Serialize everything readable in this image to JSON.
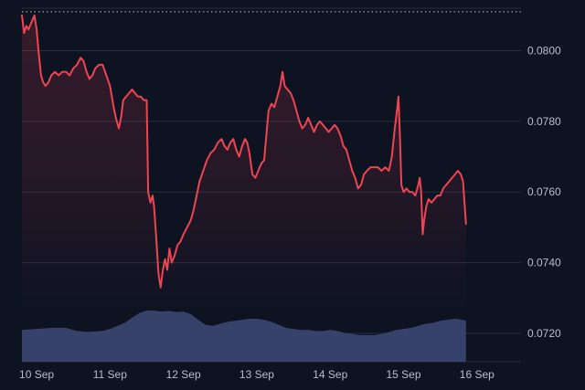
{
  "chart_data": {
    "type": "area",
    "title": "",
    "xlabel": "",
    "ylabel": "",
    "y_range": [
      0.0712,
      0.0812
    ],
    "reference_line": 0.0811,
    "grid": "horizontal",
    "y_ticks": [
      {
        "value": 0.08,
        "label": "0.0800"
      },
      {
        "value": 0.078,
        "label": "0.0780"
      },
      {
        "value": 0.076,
        "label": "0.0760"
      },
      {
        "value": 0.074,
        "label": "0.0740"
      },
      {
        "value": 0.072,
        "label": "0.0720"
      }
    ],
    "x_ticks": [
      {
        "day": 10,
        "label": "10 Sep"
      },
      {
        "day": 11,
        "label": "11 Sep"
      },
      {
        "day": 12,
        "label": "12 Sep"
      },
      {
        "day": 13,
        "label": "13 Sep"
      },
      {
        "day": 14,
        "label": "14 Sep"
      },
      {
        "day": 15,
        "label": "15 Sep"
      },
      {
        "day": 16,
        "label": "16 Sep"
      }
    ],
    "x_range": [
      9.8,
      16.6
    ],
    "price_series": {
      "color": "#ef4452",
      "points": [
        [
          9.8,
          0.081
        ],
        [
          9.83,
          0.0805
        ],
        [
          9.86,
          0.0807
        ],
        [
          9.89,
          0.0806
        ],
        [
          9.93,
          0.0808
        ],
        [
          9.97,
          0.081
        ],
        [
          10.0,
          0.0806
        ],
        [
          10.03,
          0.0799
        ],
        [
          10.06,
          0.0793
        ],
        [
          10.09,
          0.0791
        ],
        [
          10.12,
          0.079
        ],
        [
          10.16,
          0.0791
        ],
        [
          10.2,
          0.0793
        ],
        [
          10.25,
          0.0794
        ],
        [
          10.3,
          0.0793
        ],
        [
          10.35,
          0.0794
        ],
        [
          10.4,
          0.0794
        ],
        [
          10.45,
          0.0793
        ],
        [
          10.5,
          0.0795
        ],
        [
          10.55,
          0.0796
        ],
        [
          10.6,
          0.0798
        ],
        [
          10.64,
          0.0797
        ],
        [
          10.68,
          0.0794
        ],
        [
          10.72,
          0.0792
        ],
        [
          10.76,
          0.0793
        ],
        [
          10.8,
          0.0795
        ],
        [
          10.85,
          0.0796
        ],
        [
          10.9,
          0.0796
        ],
        [
          10.95,
          0.0793
        ],
        [
          11.0,
          0.079
        ],
        [
          11.05,
          0.0784
        ],
        [
          11.08,
          0.0781
        ],
        [
          11.12,
          0.0778
        ],
        [
          11.15,
          0.0781
        ],
        [
          11.18,
          0.0786
        ],
        [
          11.22,
          0.0787
        ],
        [
          11.26,
          0.0788
        ],
        [
          11.3,
          0.0789
        ],
        [
          11.34,
          0.0788
        ],
        [
          11.38,
          0.0787
        ],
        [
          11.42,
          0.0787
        ],
        [
          11.46,
          0.0786
        ],
        [
          11.5,
          0.0786
        ],
        [
          11.52,
          0.076
        ],
        [
          11.55,
          0.0757
        ],
        [
          11.58,
          0.0759
        ],
        [
          11.6,
          0.0756
        ],
        [
          11.63,
          0.0747
        ],
        [
          11.66,
          0.0737
        ],
        [
          11.69,
          0.0733
        ],
        [
          11.72,
          0.0738
        ],
        [
          11.75,
          0.0741
        ],
        [
          11.78,
          0.0738
        ],
        [
          11.81,
          0.0744
        ],
        [
          11.84,
          0.074
        ],
        [
          11.88,
          0.0742
        ],
        [
          11.92,
          0.0745
        ],
        [
          11.96,
          0.0746
        ],
        [
          12.0,
          0.0748
        ],
        [
          12.05,
          0.075
        ],
        [
          12.1,
          0.0752
        ],
        [
          12.14,
          0.0755
        ],
        [
          12.18,
          0.0759
        ],
        [
          12.22,
          0.0763
        ],
        [
          12.27,
          0.0766
        ],
        [
          12.32,
          0.0769
        ],
        [
          12.37,
          0.0771
        ],
        [
          12.42,
          0.0772
        ],
        [
          12.47,
          0.0774
        ],
        [
          12.52,
          0.0775
        ],
        [
          12.56,
          0.0773
        ],
        [
          12.6,
          0.0772
        ],
        [
          12.64,
          0.0774
        ],
        [
          12.68,
          0.0775
        ],
        [
          12.72,
          0.0772
        ],
        [
          12.76,
          0.077
        ],
        [
          12.8,
          0.0773
        ],
        [
          12.84,
          0.0775
        ],
        [
          12.87,
          0.0774
        ],
        [
          12.9,
          0.0771
        ],
        [
          12.94,
          0.0765
        ],
        [
          12.98,
          0.0764
        ],
        [
          13.02,
          0.0766
        ],
        [
          13.06,
          0.0768
        ],
        [
          13.1,
          0.0769
        ],
        [
          13.13,
          0.0776
        ],
        [
          13.16,
          0.0783
        ],
        [
          13.2,
          0.0785
        ],
        [
          13.24,
          0.0784
        ],
        [
          13.28,
          0.0787
        ],
        [
          13.32,
          0.079
        ],
        [
          13.35,
          0.0794
        ],
        [
          13.38,
          0.079
        ],
        [
          13.42,
          0.0789
        ],
        [
          13.46,
          0.0788
        ],
        [
          13.5,
          0.0786
        ],
        [
          13.54,
          0.0783
        ],
        [
          13.58,
          0.078
        ],
        [
          13.62,
          0.0778
        ],
        [
          13.66,
          0.0779
        ],
        [
          13.7,
          0.0781
        ],
        [
          13.74,
          0.0779
        ],
        [
          13.78,
          0.0777
        ],
        [
          13.82,
          0.0779
        ],
        [
          13.86,
          0.078
        ],
        [
          13.9,
          0.0779
        ],
        [
          13.94,
          0.0778
        ],
        [
          13.98,
          0.0777
        ],
        [
          14.02,
          0.0778
        ],
        [
          14.06,
          0.0779
        ],
        [
          14.1,
          0.0778
        ],
        [
          14.14,
          0.0776
        ],
        [
          14.18,
          0.0773
        ],
        [
          14.22,
          0.0772
        ],
        [
          14.26,
          0.0769
        ],
        [
          14.3,
          0.0766
        ],
        [
          14.34,
          0.0764
        ],
        [
          14.38,
          0.0761
        ],
        [
          14.42,
          0.0762
        ],
        [
          14.46,
          0.0765
        ],
        [
          14.5,
          0.0766
        ],
        [
          14.55,
          0.0767
        ],
        [
          14.6,
          0.0767
        ],
        [
          14.65,
          0.0767
        ],
        [
          14.7,
          0.0766
        ],
        [
          14.75,
          0.0767
        ],
        [
          14.8,
          0.0766
        ],
        [
          14.84,
          0.077
        ],
        [
          14.88,
          0.0778
        ],
        [
          14.91,
          0.0783
        ],
        [
          14.93,
          0.0787
        ],
        [
          14.95,
          0.0776
        ],
        [
          14.97,
          0.0762
        ],
        [
          15.0,
          0.076
        ],
        [
          15.04,
          0.0761
        ],
        [
          15.08,
          0.076
        ],
        [
          15.12,
          0.076
        ],
        [
          15.16,
          0.0759
        ],
        [
          15.2,
          0.0762
        ],
        [
          15.22,
          0.0764
        ],
        [
          15.24,
          0.076
        ],
        [
          15.26,
          0.0748
        ],
        [
          15.28,
          0.0752
        ],
        [
          15.31,
          0.0756
        ],
        [
          15.34,
          0.0758
        ],
        [
          15.38,
          0.0757
        ],
        [
          15.42,
          0.0758
        ],
        [
          15.46,
          0.0759
        ],
        [
          15.5,
          0.0759
        ],
        [
          15.54,
          0.0761
        ],
        [
          15.58,
          0.0762
        ],
        [
          15.62,
          0.0763
        ],
        [
          15.66,
          0.0764
        ],
        [
          15.7,
          0.0765
        ],
        [
          15.74,
          0.0766
        ],
        [
          15.78,
          0.0765
        ],
        [
          15.81,
          0.0763
        ],
        [
          15.83,
          0.0757
        ],
        [
          15.85,
          0.0751
        ]
      ]
    },
    "volume_series": {
      "color": "#3a4470",
      "points": [
        [
          9.8,
          0.62
        ],
        [
          10.0,
          0.64
        ],
        [
          10.2,
          0.66
        ],
        [
          10.4,
          0.66
        ],
        [
          10.55,
          0.6
        ],
        [
          10.7,
          0.58
        ],
        [
          10.9,
          0.6
        ],
        [
          11.0,
          0.64
        ],
        [
          11.1,
          0.7
        ],
        [
          11.2,
          0.76
        ],
        [
          11.3,
          0.86
        ],
        [
          11.4,
          0.95
        ],
        [
          11.5,
          1.0
        ],
        [
          11.6,
          1.0
        ],
        [
          11.7,
          0.98
        ],
        [
          11.8,
          0.99
        ],
        [
          11.9,
          0.97
        ],
        [
          12.0,
          0.98
        ],
        [
          12.1,
          0.93
        ],
        [
          12.2,
          0.82
        ],
        [
          12.3,
          0.72
        ],
        [
          12.4,
          0.7
        ],
        [
          12.5,
          0.74
        ],
        [
          12.6,
          0.78
        ],
        [
          12.7,
          0.8
        ],
        [
          12.8,
          0.82
        ],
        [
          12.9,
          0.84
        ],
        [
          13.0,
          0.84
        ],
        [
          13.1,
          0.82
        ],
        [
          13.2,
          0.78
        ],
        [
          13.3,
          0.72
        ],
        [
          13.4,
          0.66
        ],
        [
          13.5,
          0.64
        ],
        [
          13.6,
          0.62
        ],
        [
          13.7,
          0.62
        ],
        [
          13.8,
          0.6
        ],
        [
          13.9,
          0.6
        ],
        [
          14.0,
          0.62
        ],
        [
          14.1,
          0.6
        ],
        [
          14.2,
          0.56
        ],
        [
          14.3,
          0.54
        ],
        [
          14.4,
          0.52
        ],
        [
          14.5,
          0.52
        ],
        [
          14.6,
          0.52
        ],
        [
          14.7,
          0.54
        ],
        [
          14.8,
          0.58
        ],
        [
          14.9,
          0.62
        ],
        [
          15.0,
          0.64
        ],
        [
          15.1,
          0.66
        ],
        [
          15.2,
          0.7
        ],
        [
          15.3,
          0.74
        ],
        [
          15.4,
          0.76
        ],
        [
          15.5,
          0.8
        ],
        [
          15.6,
          0.82
        ],
        [
          15.7,
          0.84
        ],
        [
          15.8,
          0.82
        ],
        [
          15.85,
          0.8
        ]
      ]
    },
    "colors": {
      "background": "#0e1322",
      "grid": "#272d40",
      "axis_text": "#b8bdd0",
      "reference_dots": "#9aa0b5",
      "area_top": "#ef4452"
    }
  }
}
